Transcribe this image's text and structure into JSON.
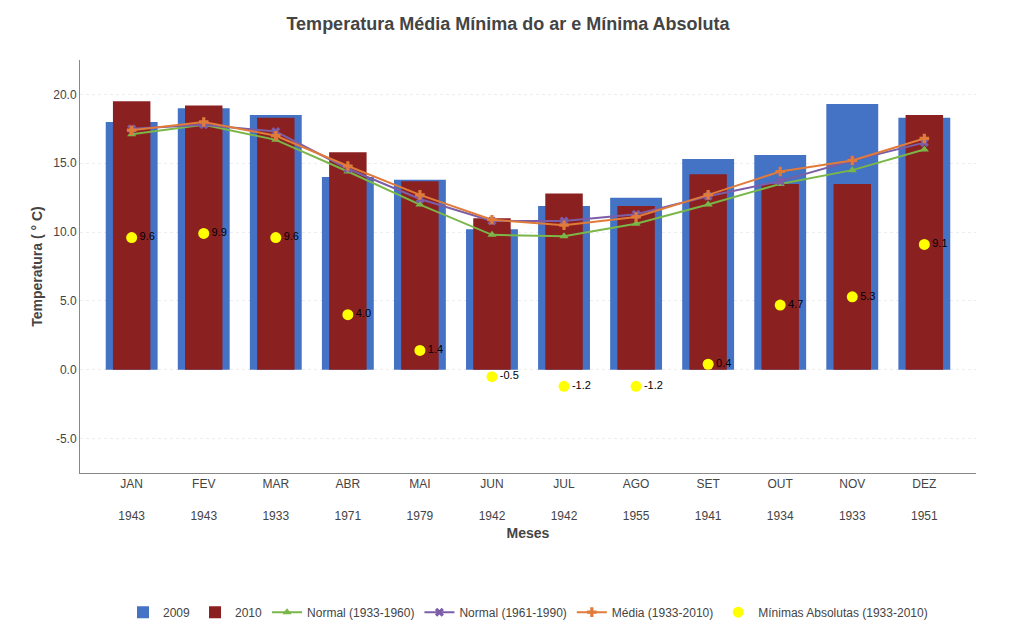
{
  "chart_data": {
    "type": "bar",
    "title": "Temperatura Média Mínima do ar e Mínima Absoluta",
    "x_label": "Meses",
    "y_label": "Temperatura ( ° C)",
    "categories": [
      "JAN\n\n1943",
      "FEV\n\n1943",
      "MAR\n\n1933",
      "ABR\n\n1971",
      "MAI\n\n1979",
      "JUN\n\n1942",
      "JUL\n\n1942",
      "AGO\n\n1955",
      "SET\n\n1941",
      "OUT\n\n1934",
      "NOV\n\n1933",
      "DEZ\n\n1951"
    ],
    "series": [
      {
        "name": "2009",
        "type": "bar",
        "color": "#4472C4",
        "values": [
          18.0,
          19.0,
          18.5,
          14.0,
          13.8,
          10.2,
          11.9,
          12.5,
          15.3,
          15.6,
          19.3,
          18.3
        ]
      },
      {
        "name": "2010",
        "type": "bar",
        "color": "#8B2020",
        "values": [
          19.5,
          19.2,
          18.3,
          15.8,
          13.7,
          11.0,
          12.8,
          11.9,
          14.2,
          13.5,
          13.5,
          18.5
        ]
      },
      {
        "name": "Normal (1933-1960)",
        "type": "line",
        "color": "#7AB648",
        "marker": "triangle-up",
        "values": [
          17.1,
          17.8,
          16.7,
          14.4,
          12.0,
          9.8,
          9.7,
          10.6,
          12.0,
          13.5,
          14.5,
          16.0
        ]
      },
      {
        "name": "Normal (1961-1990)",
        "type": "line",
        "color": "#7B5EA7",
        "marker": "x",
        "values": [
          17.5,
          17.8,
          17.3,
          14.6,
          12.4,
          10.8,
          10.8,
          11.3,
          12.6,
          13.7,
          15.2,
          16.5
        ]
      },
      {
        "name": "Média (1933-2010)",
        "type": "line",
        "color": "#E07B39",
        "marker": "plus",
        "values": [
          17.4,
          18.0,
          17.0,
          14.8,
          12.7,
          10.9,
          10.5,
          11.1,
          12.7,
          14.4,
          15.2,
          16.8
        ]
      },
      {
        "name": "Mínimas Absolutas (1933-2010)",
        "type": "scatter",
        "color": "#FFFF00",
        "marker": "circle",
        "data_labels": true,
        "values": [
          9.6,
          9.9,
          9.6,
          4.0,
          1.4,
          -0.5,
          -1.2,
          -1.2,
          0.4,
          4.7,
          5.3,
          9.1
        ],
        "value_labels": [
          "9.6",
          "9.9",
          "9.6",
          "4.0",
          "1.4",
          "-0.5",
          "-1.2",
          "-1.2",
          "0.4",
          "4.7",
          "5.3",
          "9.1"
        ]
      }
    ],
    "ylim": [
      -7.5,
      22.5
    ],
    "yticks": [
      {
        "value": -5.0,
        "label": "-5.0"
      },
      {
        "value": 0.0,
        "label": "0.0"
      },
      {
        "value": 5.0,
        "label": "5.0"
      },
      {
        "value": 10.0,
        "label": "10.0"
      },
      {
        "value": 15.0,
        "label": "15.0"
      },
      {
        "value": 20.0,
        "label": "20.0"
      }
    ],
    "grid": true,
    "legend": "bottom"
  }
}
